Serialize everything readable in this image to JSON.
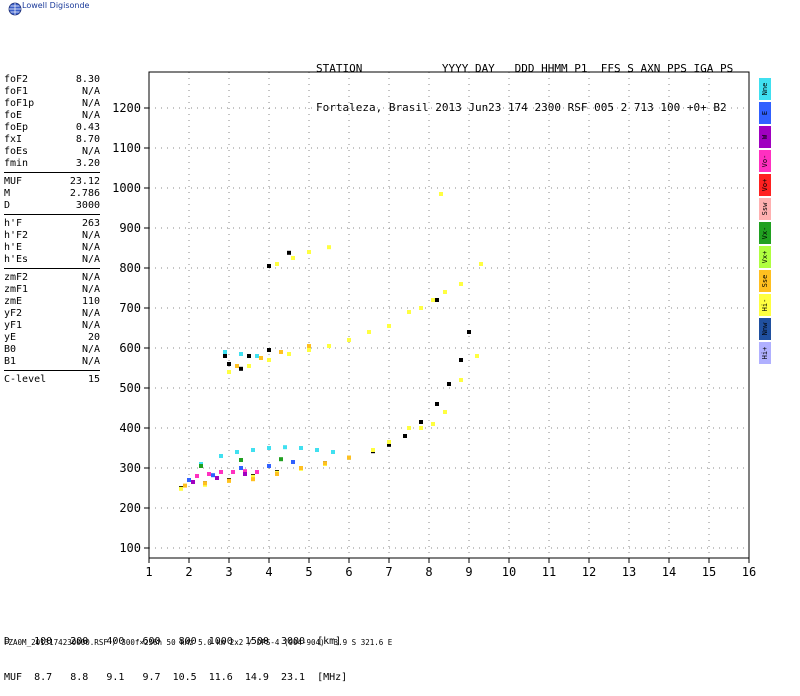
{
  "brand": "Lowell Digisonde",
  "header": {
    "line1": "STATION            YYYY DAY   DDD HHMM P1  FFS S AXN PPS IGA PS",
    "line2": "Fortaleza, Brasil 2013 Jun23 174 2300 RSF 005 2 713 100 +0+ B2"
  },
  "params": {
    "group1": [
      {
        "k": "foF2",
        "v": "8.30"
      },
      {
        "k": "foF1",
        "v": "N/A"
      },
      {
        "k": "foF1p",
        "v": "N/A"
      },
      {
        "k": "foE",
        "v": "N/A"
      },
      {
        "k": "foEp",
        "v": "0.43"
      },
      {
        "k": "fxI",
        "v": "8.70"
      },
      {
        "k": "foEs",
        "v": "N/A"
      },
      {
        "k": "fmin",
        "v": "3.20"
      }
    ],
    "group2": [
      {
        "k": "MUF",
        "v": "23.12"
      },
      {
        "k": "M",
        "v": "2.786"
      },
      {
        "k": "D",
        "v": "3000"
      }
    ],
    "group3": [
      {
        "k": "h'F",
        "v": "263"
      },
      {
        "k": "h'F2",
        "v": "N/A"
      },
      {
        "k": "h'E",
        "v": "N/A"
      },
      {
        "k": "h'Es",
        "v": "N/A"
      }
    ],
    "group4": [
      {
        "k": "zmF2",
        "v": "N/A"
      },
      {
        "k": "zmF1",
        "v": "N/A"
      },
      {
        "k": "zmE",
        "v": "110"
      },
      {
        "k": "yF2",
        "v": "N/A"
      },
      {
        "k": "yF1",
        "v": "N/A"
      },
      {
        "k": "yE",
        "v": "20"
      },
      {
        "k": "B0",
        "v": "N/A"
      },
      {
        "k": "B1",
        "v": "N/A"
      }
    ],
    "group5": [
      {
        "k": "C-level",
        "v": "15"
      }
    ]
  },
  "legend": [
    {
      "label": "Nne",
      "color": "#40e0f0"
    },
    {
      "label": "E",
      "color": "#3060ff"
    },
    {
      "label": "W",
      "color": "#a000c0"
    },
    {
      "label": "Vo-",
      "color": "#ff30c0"
    },
    {
      "label": "Vo+",
      "color": "#ff2020"
    },
    {
      "label": "Ssw",
      "color": "#ffb0b0"
    },
    {
      "label": "Vx-",
      "color": "#20a020"
    },
    {
      "label": "Vx+",
      "color": "#b0ff40"
    },
    {
      "label": "Sse",
      "color": "#ffc020"
    },
    {
      "label": "Hi-",
      "color": "#ffff40"
    },
    {
      "label": "Nnw",
      "color": "#2050a0"
    },
    {
      "label": "Hi+",
      "color": "#b0b0ff"
    }
  ],
  "muf_table": {
    "row1": "D    100   200   400   600   800  1000  1500  3000  [km]",
    "row2": "MUF  8.7   8.8   9.1   9.7  10.5  11.6  14.9  23.1  [MHz]"
  },
  "footer": "FZA0M_2013174230000.RSF / 300f×256h 50 kHz 5.0 km 2x2 / DPS-4 (904-904)  3.9 S 321.6 E",
  "chart_data": {
    "type": "scatter",
    "xlim": [
      1,
      16
    ],
    "ylim": [
      75,
      1290
    ],
    "x_ticks": [
      1,
      2,
      3,
      4,
      5,
      6,
      7,
      8,
      9,
      10,
      11,
      12,
      13,
      14,
      15,
      16
    ],
    "y_ticks": [
      100,
      200,
      300,
      400,
      500,
      600,
      700,
      800,
      900,
      1000,
      1100,
      1200
    ],
    "grid": true,
    "series": [
      {
        "color": "#000000",
        "points": [
          [
            1.8,
            250
          ],
          [
            2.4,
            262
          ],
          [
            3,
            270
          ],
          [
            3.6,
            280
          ],
          [
            4.2,
            290
          ],
          [
            4.8,
            300
          ],
          [
            5.4,
            312
          ],
          [
            6,
            326
          ],
          [
            6.6,
            342
          ],
          [
            7,
            358
          ],
          [
            7.4,
            380
          ],
          [
            7.8,
            415
          ],
          [
            8.2,
            460
          ],
          [
            8.5,
            510
          ],
          [
            8.8,
            570
          ],
          [
            9,
            640
          ],
          [
            3,
            560
          ],
          [
            3.5,
            580
          ],
          [
            4,
            595
          ],
          [
            2.9,
            580
          ],
          [
            3.3,
            548
          ],
          [
            8.2,
            720
          ],
          [
            4,
            805
          ],
          [
            4.5,
            838
          ]
        ]
      },
      {
        "color": "#ffff40",
        "points": [
          [
            1.8,
            248
          ],
          [
            2.4,
            258
          ],
          [
            3,
            268
          ],
          [
            3.6,
            278
          ],
          [
            4.2,
            288
          ],
          [
            4.8,
            298
          ],
          [
            5.4,
            310
          ],
          [
            6,
            326
          ],
          [
            6.6,
            345
          ],
          [
            7,
            365
          ],
          [
            7.5,
            400
          ],
          [
            7.8,
            400
          ],
          [
            8.1,
            410
          ],
          [
            8.4,
            440
          ],
          [
            8.8,
            520
          ],
          [
            9.2,
            580
          ],
          [
            3,
            540
          ],
          [
            3.5,
            555
          ],
          [
            4,
            570
          ],
          [
            4.5,
            585
          ],
          [
            5,
            595
          ],
          [
            5.5,
            605
          ],
          [
            6,
            620
          ],
          [
            6.5,
            640
          ],
          [
            7,
            655
          ],
          [
            7.5,
            690
          ],
          [
            7.8,
            700
          ],
          [
            8.1,
            720
          ],
          [
            8.4,
            740
          ],
          [
            8.8,
            760
          ],
          [
            9.3,
            810
          ],
          [
            4.2,
            810
          ],
          [
            4.6,
            825
          ],
          [
            5,
            840
          ],
          [
            5.5,
            852
          ],
          [
            8.3,
            985
          ]
        ]
      },
      {
        "color": "#40e0f0",
        "points": [
          [
            2.3,
            310
          ],
          [
            2.8,
            330
          ],
          [
            3.2,
            340
          ],
          [
            3.6,
            345
          ],
          [
            4,
            350
          ],
          [
            4.4,
            352
          ],
          [
            4.8,
            350
          ],
          [
            5.2,
            345
          ],
          [
            5.6,
            340
          ],
          [
            2.9,
            590
          ],
          [
            3.3,
            585
          ],
          [
            3.7,
            580
          ]
        ]
      },
      {
        "color": "#ff30c0",
        "points": [
          [
            2.2,
            280
          ],
          [
            2.5,
            285
          ],
          [
            2.8,
            290
          ],
          [
            3.1,
            290
          ],
          [
            3.4,
            292
          ],
          [
            3.7,
            290
          ]
        ]
      },
      {
        "color": "#ffc020",
        "points": [
          [
            1.9,
            256
          ],
          [
            2.4,
            262
          ],
          [
            3,
            268
          ],
          [
            3.6,
            272
          ],
          [
            4.2,
            285
          ],
          [
            4.8,
            300
          ],
          [
            5.4,
            312
          ],
          [
            6,
            326
          ],
          [
            3.2,
            555
          ],
          [
            3.8,
            575
          ],
          [
            4.3,
            590
          ],
          [
            5,
            605
          ]
        ]
      },
      {
        "color": "#3060ff",
        "points": [
          [
            2,
            270
          ],
          [
            2.6,
            282
          ],
          [
            3.3,
            300
          ],
          [
            4,
            305
          ],
          [
            4.6,
            315
          ]
        ]
      },
      {
        "color": "#a000c0",
        "points": [
          [
            2.1,
            265
          ],
          [
            2.7,
            275
          ],
          [
            3.4,
            285
          ]
        ]
      },
      {
        "color": "#20a020",
        "points": [
          [
            2.3,
            305
          ],
          [
            3.3,
            320
          ],
          [
            4.3,
            322
          ]
        ]
      }
    ]
  }
}
